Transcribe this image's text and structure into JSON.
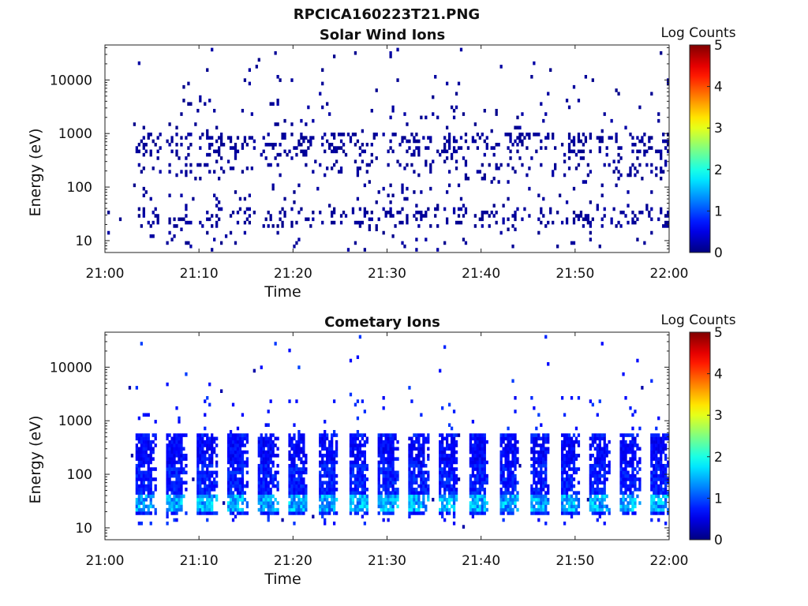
{
  "figure_title": "RPCICA160223T21.PNG",
  "chart_data": [
    {
      "type": "heatmap",
      "title": "Solar Wind Ions",
      "xlabel": "Time",
      "ylabel": "Energy (eV)",
      "x_ticks": [
        "21:00",
        "21:10",
        "21:20",
        "21:30",
        "21:40",
        "21:50",
        "22:00"
      ],
      "x_range_minutes": [
        0,
        60
      ],
      "y_scale": "log",
      "y_ticks": [
        "10",
        "100",
        "1000",
        "10000"
      ],
      "ylim": [
        6,
        45000
      ],
      "colorbar": {
        "title": "Log Counts",
        "ticks": [
          "0",
          "1",
          "2",
          "3",
          "4",
          "5"
        ],
        "range": [
          0,
          5
        ],
        "colormap": "jet"
      },
      "pattern": "sparse",
      "burst_start_minutes": [
        3.5,
        6.8,
        10.1,
        13.3,
        16.6,
        19.8,
        23.1,
        26.4,
        29.6,
        32.9,
        36.2,
        39.4,
        42.7,
        45.9,
        49.2,
        52.5,
        55.7,
        59.0
      ],
      "typical_log_counts": 0.1
    },
    {
      "type": "heatmap",
      "title": "Cometary Ions",
      "xlabel": "Time",
      "ylabel": "Energy (eV)",
      "x_ticks": [
        "21:00",
        "21:10",
        "21:20",
        "21:30",
        "21:40",
        "21:50",
        "22:00"
      ],
      "x_range_minutes": [
        0,
        60
      ],
      "y_scale": "log",
      "y_ticks": [
        "10",
        "100",
        "1000",
        "10000"
      ],
      "ylim": [
        6,
        45000
      ],
      "colorbar": {
        "title": "Log Counts",
        "ticks": [
          "0",
          "1",
          "2",
          "3",
          "4",
          "5"
        ],
        "range": [
          0,
          5
        ],
        "colormap": "jet"
      },
      "pattern": "dense",
      "burst_start_minutes": [
        3.2,
        6.5,
        9.7,
        13.0,
        16.2,
        19.4,
        22.6,
        25.8,
        29.0,
        32.2,
        35.4,
        38.6,
        41.9,
        45.1,
        48.3,
        51.5,
        54.7,
        58.0
      ],
      "energy_band_eV": [
        20,
        500
      ],
      "peak_energy_eV": 35,
      "peak_log_counts": 1.9
    }
  ]
}
